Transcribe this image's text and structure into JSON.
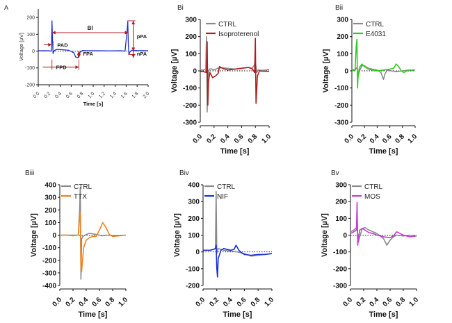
{
  "colors": {
    "ctrl": "#8a8a8a",
    "panelA": "#1a2fd6",
    "annot": "#b01c1c",
    "isoproterenol": "#b01c1c",
    "e4031": "#2ecc1f",
    "ttx": "#f0821e",
    "nif": "#1a2fd6",
    "mos": "#c23ccf"
  },
  "chart_data": [
    {
      "panel": "A",
      "type": "line",
      "xlabel": "Time [s]",
      "ylabel": "Voltage [µV]",
      "xlim": [
        0.0,
        2.0
      ],
      "ylim": [
        -200,
        250
      ],
      "xticks": [
        "0.0",
        "0.2",
        "0.4",
        "0.6",
        "0.8",
        "1.0",
        "1.2",
        "1.4",
        "1.6",
        "1.8",
        "2.0"
      ],
      "yticks": [
        "-200",
        "-100",
        "0",
        "100",
        "200"
      ],
      "series": [
        {
          "color_key": "panelA",
          "x": [
            0.0,
            0.18,
            0.24,
            0.25,
            0.26,
            0.27,
            0.28,
            0.3,
            0.34,
            0.45,
            0.55,
            0.65,
            0.68,
            0.72,
            0.76,
            0.8,
            0.9,
            1.1,
            1.3,
            1.5,
            1.58,
            1.62,
            1.63,
            1.64,
            1.65,
            1.67,
            1.7,
            1.8,
            2.0
          ],
          "y": [
            2,
            2,
            0,
            180,
            60,
            -15,
            -5,
            5,
            10,
            8,
            5,
            -10,
            -35,
            -40,
            -8,
            3,
            2,
            2,
            1,
            2,
            0,
            130,
            175,
            40,
            -20,
            -5,
            5,
            3,
            2
          ]
        }
      ],
      "annotations": [
        "BI",
        "pPA",
        "nPA",
        "PAD",
        "FPA",
        "FPD"
      ]
    },
    {
      "panel": "Bi",
      "type": "line",
      "xlabel": "Time [s]",
      "ylabel": "Voltage [µV]",
      "xlim": [
        0.0,
        1.0
      ],
      "ylim": [
        -300,
        300
      ],
      "xticks": [
        "0.0",
        "0.2",
        "0.4",
        "0.6",
        "0.8",
        "1.0"
      ],
      "yticks": [
        "-300",
        "-200",
        "-100",
        "0",
        "100",
        "200",
        "300"
      ],
      "series": [
        {
          "name": "CTRL",
          "color_key": "ctrl",
          "x": [
            0.0,
            0.05,
            0.08,
            0.09,
            0.1,
            0.11,
            0.13,
            0.16,
            0.2,
            0.25,
            0.3,
            0.4,
            0.5,
            0.6,
            0.7,
            0.75,
            0.78,
            0.8,
            0.82,
            0.84,
            0.88,
            0.95,
            1.0
          ],
          "y": [
            5,
            5,
            10,
            200,
            -240,
            -40,
            10,
            12,
            5,
            15,
            18,
            15,
            10,
            15,
            20,
            15,
            30,
            50,
            -10,
            5,
            3,
            5,
            8
          ]
        },
        {
          "name": "Isoproterenol",
          "color_key": "isoproterenol",
          "x": [
            0.0,
            0.05,
            0.09,
            0.1,
            0.11,
            0.12,
            0.14,
            0.18,
            0.22,
            0.26,
            0.28,
            0.32,
            0.4,
            0.5,
            0.6,
            0.7,
            0.76,
            0.79,
            0.8,
            0.81,
            0.83,
            0.86,
            0.9,
            1.0
          ],
          "y": [
            -5,
            -5,
            -10,
            170,
            -200,
            -60,
            -10,
            -40,
            -30,
            -15,
            25,
            15,
            5,
            10,
            15,
            20,
            10,
            -10,
            190,
            -190,
            -30,
            0,
            -2,
            -3
          ]
        }
      ]
    },
    {
      "panel": "Bii",
      "type": "line",
      "xlabel": "Time [s]",
      "ylabel": "Voltage [µV]",
      "xlim": [
        0.0,
        1.0
      ],
      "ylim": [
        -300,
        300
      ],
      "xticks": [
        "0.0",
        "0.2",
        "0.4",
        "0.6",
        "0.8",
        "1.0"
      ],
      "yticks": [
        "-300",
        "-200",
        "-100",
        "0",
        "100",
        "200",
        "300"
      ],
      "series": [
        {
          "name": "CTRL",
          "color_key": "ctrl",
          "x": [
            0.0,
            0.05,
            0.08,
            0.1,
            0.12,
            0.16,
            0.2,
            0.26,
            0.32,
            0.4,
            0.46,
            0.5,
            0.52,
            0.56,
            0.62,
            0.7,
            0.8,
            0.9,
            1.0
          ],
          "y": [
            10,
            5,
            20,
            -30,
            0,
            30,
            30,
            15,
            10,
            5,
            -10,
            -50,
            -20,
            5,
            0,
            -5,
            0,
            5,
            5
          ]
        },
        {
          "name": "E4031",
          "color_key": "e4031",
          "x": [
            0.0,
            0.05,
            0.07,
            0.08,
            0.09,
            0.1,
            0.12,
            0.16,
            0.2,
            0.26,
            0.32,
            0.4,
            0.5,
            0.6,
            0.66,
            0.7,
            0.74,
            0.78,
            0.82,
            0.9,
            1.0
          ],
          "y": [
            0,
            5,
            150,
            185,
            -100,
            -20,
            20,
            40,
            25,
            10,
            5,
            0,
            5,
            10,
            15,
            40,
            25,
            0,
            -10,
            5,
            5
          ]
        }
      ]
    },
    {
      "panel": "Biii",
      "type": "line",
      "xlabel": "Time [s]",
      "ylabel": "Voltage [µV]",
      "xlim": [
        0.0,
        1.0
      ],
      "ylim": [
        -400,
        400
      ],
      "xticks": [
        "0.0",
        "0.2",
        "0.4",
        "0.6",
        "0.8",
        "1.0"
      ],
      "yticks": [
        "-400",
        "-300",
        "-200",
        "-100",
        "0",
        "100",
        "200",
        "300",
        "400"
      ],
      "series": [
        {
          "name": "CTRL",
          "color_key": "ctrl",
          "x": [
            0.0,
            0.1,
            0.2,
            0.28,
            0.3,
            0.31,
            0.32,
            0.33,
            0.35,
            0.4,
            0.45,
            0.5,
            0.6,
            0.65,
            0.7,
            0.8,
            0.9,
            1.0
          ],
          "y": [
            0,
            0,
            0,
            0,
            200,
            380,
            -350,
            -30,
            -10,
            5,
            15,
            10,
            0,
            -5,
            0,
            -3,
            -2,
            0
          ]
        },
        {
          "name": "TTX",
          "color_key": "ttx",
          "x": [
            0.0,
            0.1,
            0.2,
            0.28,
            0.3,
            0.31,
            0.32,
            0.33,
            0.36,
            0.4,
            0.45,
            0.5,
            0.55,
            0.6,
            0.65,
            0.7,
            0.75,
            0.8,
            0.9,
            1.0
          ],
          "y": [
            0,
            0,
            -5,
            0,
            150,
            180,
            -270,
            -290,
            -100,
            -40,
            -20,
            -10,
            -10,
            40,
            100,
            60,
            5,
            -10,
            -5,
            0
          ]
        }
      ]
    },
    {
      "panel": "Biv",
      "type": "line",
      "xlabel": "Time [s]",
      "ylabel": "Voltage [µV]",
      "xlim": [
        0.0,
        1.0
      ],
      "ylim": [
        -200,
        400
      ],
      "xticks": [
        "0.0",
        "0.2",
        "0.4",
        "0.6",
        "0.8",
        "1.0"
      ],
      "yticks": [
        "-200",
        "-100",
        "0",
        "100",
        "200",
        "300",
        "400"
      ],
      "series": [
        {
          "name": "CTRL",
          "color_key": "ctrl",
          "x": [
            0.0,
            0.1,
            0.15,
            0.18,
            0.19,
            0.2,
            0.22,
            0.26,
            0.3,
            0.4,
            0.5,
            0.6,
            0.7,
            0.8,
            0.9,
            1.0
          ],
          "y": [
            10,
            10,
            15,
            20,
            360,
            -10,
            20,
            15,
            10,
            5,
            0,
            -10,
            -25,
            -20,
            -15,
            -10
          ]
        },
        {
          "name": "NIF",
          "color_key": "nif",
          "x": [
            0.0,
            0.1,
            0.15,
            0.18,
            0.19,
            0.2,
            0.21,
            0.22,
            0.26,
            0.3,
            0.4,
            0.45,
            0.48,
            0.52,
            0.56,
            0.6,
            0.7,
            0.8,
            0.9,
            1.0
          ],
          "y": [
            10,
            10,
            15,
            20,
            40,
            -100,
            -150,
            -40,
            10,
            20,
            10,
            15,
            40,
            10,
            -5,
            -15,
            -20,
            -15,
            -15,
            -10
          ]
        }
      ]
    },
    {
      "panel": "Bv",
      "type": "line",
      "xlabel": "Time [s]",
      "ylabel": "Voltage [µV]",
      "xlim": [
        0.0,
        1.0
      ],
      "ylim": [
        -300,
        300
      ],
      "xticks": [
        "0.0",
        "0.2",
        "0.4",
        "0.6",
        "0.8",
        "1.0"
      ],
      "yticks": [
        "-300",
        "-200",
        "-100",
        "0",
        "100",
        "200",
        "300"
      ],
      "series": [
        {
          "name": "CTRL",
          "color_key": "ctrl",
          "x": [
            0.0,
            0.05,
            0.08,
            0.1,
            0.12,
            0.14,
            0.18,
            0.22,
            0.28,
            0.34,
            0.4,
            0.5,
            0.55,
            0.6,
            0.65,
            0.7,
            0.8,
            0.9,
            1.0
          ],
          "y": [
            20,
            30,
            40,
            50,
            -40,
            -10,
            40,
            45,
            30,
            20,
            10,
            -20,
            -60,
            -30,
            -10,
            0,
            -5,
            0,
            -5
          ]
        },
        {
          "name": "MOS",
          "color_key": "mos",
          "x": [
            0.0,
            0.05,
            0.09,
            0.1,
            0.11,
            0.12,
            0.14,
            0.18,
            0.22,
            0.28,
            0.34,
            0.4,
            0.5,
            0.6,
            0.65,
            0.7,
            0.75,
            0.8,
            0.9,
            1.0
          ],
          "y": [
            10,
            20,
            30,
            195,
            -60,
            -20,
            30,
            40,
            30,
            15,
            10,
            0,
            -10,
            -15,
            -5,
            20,
            10,
            0,
            -10,
            -5
          ]
        }
      ]
    }
  ]
}
